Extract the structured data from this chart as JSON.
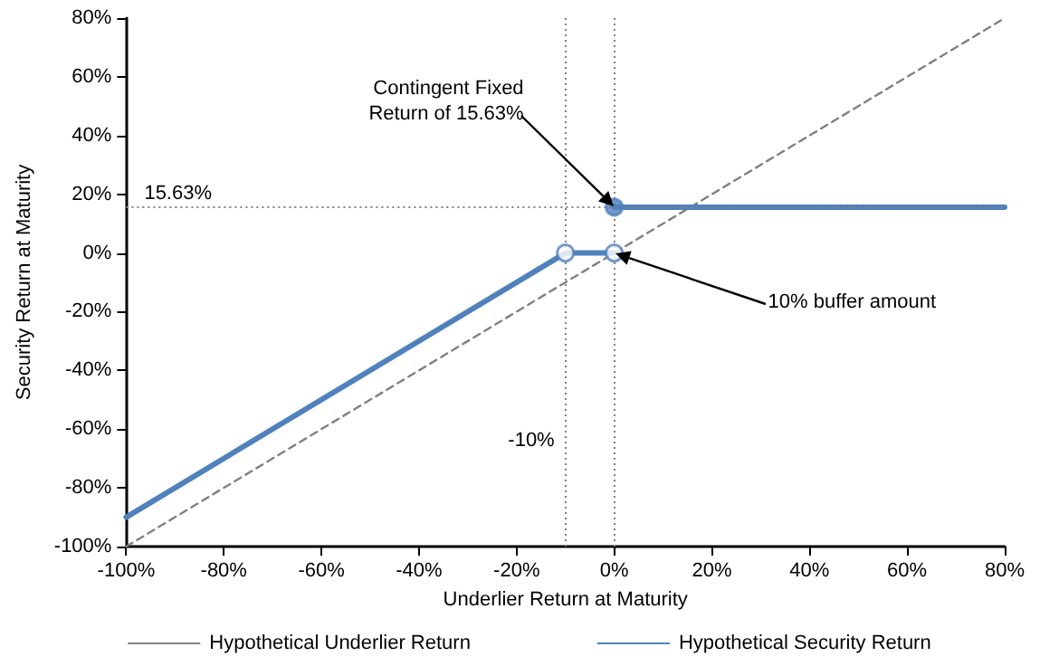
{
  "chart_data": {
    "type": "line",
    "xlabel": "Underlier Return at Maturity",
    "ylabel": "Security Return at Maturity",
    "xlim": [
      -100,
      80
    ],
    "ylim": [
      -100,
      80
    ],
    "xticks": [
      {
        "value": -100,
        "label": "-100%"
      },
      {
        "value": -80,
        "label": "-80%"
      },
      {
        "value": -60,
        "label": "-60%"
      },
      {
        "value": -40,
        "label": "-40%"
      },
      {
        "value": -20,
        "label": "-20%"
      },
      {
        "value": 0,
        "label": "0%"
      },
      {
        "value": 20,
        "label": "20%"
      },
      {
        "value": 40,
        "label": "40%"
      },
      {
        "value": 60,
        "label": "60%"
      },
      {
        "value": 80,
        "label": "80%"
      }
    ],
    "yticks": [
      {
        "value": -100,
        "label": "-100%"
      },
      {
        "value": -80,
        "label": "-80%"
      },
      {
        "value": -60,
        "label": "-60%"
      },
      {
        "value": -40,
        "label": "-40%"
      },
      {
        "value": -20,
        "label": "-20%"
      },
      {
        "value": 0,
        "label": "0%"
      },
      {
        "value": 20,
        "label": "20%"
      },
      {
        "value": 40,
        "label": "40%"
      },
      {
        "value": 60,
        "label": "60%"
      },
      {
        "value": 80,
        "label": "80%"
      }
    ],
    "grid": false,
    "legend": "bottom",
    "series": [
      {
        "name": "Hypothetical Underlier Return",
        "color": "#808080",
        "line_style": "dashed",
        "marker": "none",
        "x": [
          -100,
          80
        ],
        "values": [
          -100,
          80
        ]
      },
      {
        "name": "Hypothetical Security Return",
        "color": "#4f81bd",
        "line_style": "solid",
        "marker": "none",
        "x": [
          -100,
          -10,
          0,
          null,
          0,
          80
        ],
        "values": [
          -90,
          0,
          0,
          null,
          15.6,
          15.6
        ]
      },
      {
        "type": "scatter",
        "color": "#4f81bd",
        "marker": "circle",
        "x": [
          -10,
          0
        ],
        "values": [
          0,
          0
        ]
      },
      {
        "type": "scatter",
        "color": "#4f81bd",
        "marker": "circle",
        "x": [
          0
        ],
        "values": [
          15.6
        ]
      }
    ],
    "ref_lines": [
      {
        "axis": "y",
        "value": 15.63,
        "label": "15.63%",
        "color": "#808080",
        "line_style": "dotted"
      },
      {
        "axis": "x",
        "value": -10,
        "label": "-10%",
        "color": "#808080",
        "line_style": "dotted"
      },
      {
        "axis": "x",
        "value": 0,
        "color": "#808080",
        "line_style": "dotted"
      }
    ],
    "annotations": [
      {
        "text": "Contingent Fixed\nReturn of 15.63%",
        "x": 0,
        "y": 15.6
      },
      {
        "text": "10% buffer amount",
        "x": 0,
        "y": 0
      }
    ]
  }
}
